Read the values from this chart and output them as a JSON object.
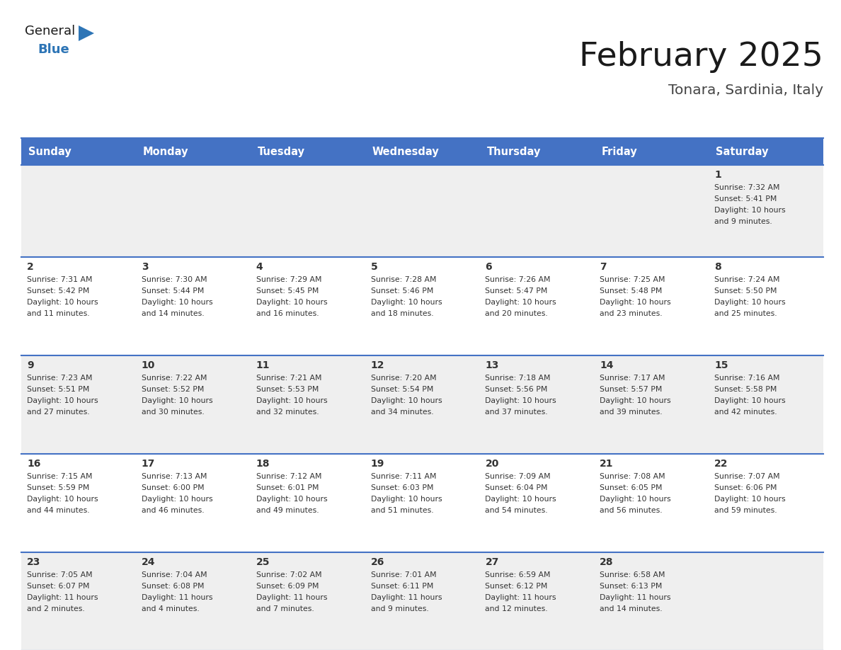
{
  "title": "February 2025",
  "subtitle": "Tonara, Sardinia, Italy",
  "header_bg": "#4472C4",
  "header_text_color": "#FFFFFF",
  "day_names": [
    "Sunday",
    "Monday",
    "Tuesday",
    "Wednesday",
    "Thursday",
    "Friday",
    "Saturday"
  ],
  "cell_bg_row0": "#EFEFEF",
  "cell_bg_row1": "#FFFFFF",
  "cell_bg_row2": "#EFEFEF",
  "cell_bg_row3": "#FFFFFF",
  "cell_bg_row4": "#EFEFEF",
  "cell_border_color": "#4472C4",
  "title_color": "#1a1a1a",
  "subtitle_color": "#444444",
  "text_color": "#333333",
  "logo_general_color": "#1a1a1a",
  "logo_blue_color": "#2E75B6",
  "days_data": [
    {
      "day": 1,
      "col": 6,
      "row": 0,
      "sunrise": "7:32 AM",
      "sunset": "5:41 PM",
      "daylight": "10 hours and 9 minutes."
    },
    {
      "day": 2,
      "col": 0,
      "row": 1,
      "sunrise": "7:31 AM",
      "sunset": "5:42 PM",
      "daylight": "10 hours and 11 minutes."
    },
    {
      "day": 3,
      "col": 1,
      "row": 1,
      "sunrise": "7:30 AM",
      "sunset": "5:44 PM",
      "daylight": "10 hours and 14 minutes."
    },
    {
      "day": 4,
      "col": 2,
      "row": 1,
      "sunrise": "7:29 AM",
      "sunset": "5:45 PM",
      "daylight": "10 hours and 16 minutes."
    },
    {
      "day": 5,
      "col": 3,
      "row": 1,
      "sunrise": "7:28 AM",
      "sunset": "5:46 PM",
      "daylight": "10 hours and 18 minutes."
    },
    {
      "day": 6,
      "col": 4,
      "row": 1,
      "sunrise": "7:26 AM",
      "sunset": "5:47 PM",
      "daylight": "10 hours and 20 minutes."
    },
    {
      "day": 7,
      "col": 5,
      "row": 1,
      "sunrise": "7:25 AM",
      "sunset": "5:48 PM",
      "daylight": "10 hours and 23 minutes."
    },
    {
      "day": 8,
      "col": 6,
      "row": 1,
      "sunrise": "7:24 AM",
      "sunset": "5:50 PM",
      "daylight": "10 hours and 25 minutes."
    },
    {
      "day": 9,
      "col": 0,
      "row": 2,
      "sunrise": "7:23 AM",
      "sunset": "5:51 PM",
      "daylight": "10 hours and 27 minutes."
    },
    {
      "day": 10,
      "col": 1,
      "row": 2,
      "sunrise": "7:22 AM",
      "sunset": "5:52 PM",
      "daylight": "10 hours and 30 minutes."
    },
    {
      "day": 11,
      "col": 2,
      "row": 2,
      "sunrise": "7:21 AM",
      "sunset": "5:53 PM",
      "daylight": "10 hours and 32 minutes."
    },
    {
      "day": 12,
      "col": 3,
      "row": 2,
      "sunrise": "7:20 AM",
      "sunset": "5:54 PM",
      "daylight": "10 hours and 34 minutes."
    },
    {
      "day": 13,
      "col": 4,
      "row": 2,
      "sunrise": "7:18 AM",
      "sunset": "5:56 PM",
      "daylight": "10 hours and 37 minutes."
    },
    {
      "day": 14,
      "col": 5,
      "row": 2,
      "sunrise": "7:17 AM",
      "sunset": "5:57 PM",
      "daylight": "10 hours and 39 minutes."
    },
    {
      "day": 15,
      "col": 6,
      "row": 2,
      "sunrise": "7:16 AM",
      "sunset": "5:58 PM",
      "daylight": "10 hours and 42 minutes."
    },
    {
      "day": 16,
      "col": 0,
      "row": 3,
      "sunrise": "7:15 AM",
      "sunset": "5:59 PM",
      "daylight": "10 hours and 44 minutes."
    },
    {
      "day": 17,
      "col": 1,
      "row": 3,
      "sunrise": "7:13 AM",
      "sunset": "6:00 PM",
      "daylight": "10 hours and 46 minutes."
    },
    {
      "day": 18,
      "col": 2,
      "row": 3,
      "sunrise": "7:12 AM",
      "sunset": "6:01 PM",
      "daylight": "10 hours and 49 minutes."
    },
    {
      "day": 19,
      "col": 3,
      "row": 3,
      "sunrise": "7:11 AM",
      "sunset": "6:03 PM",
      "daylight": "10 hours and 51 minutes."
    },
    {
      "day": 20,
      "col": 4,
      "row": 3,
      "sunrise": "7:09 AM",
      "sunset": "6:04 PM",
      "daylight": "10 hours and 54 minutes."
    },
    {
      "day": 21,
      "col": 5,
      "row": 3,
      "sunrise": "7:08 AM",
      "sunset": "6:05 PM",
      "daylight": "10 hours and 56 minutes."
    },
    {
      "day": 22,
      "col": 6,
      "row": 3,
      "sunrise": "7:07 AM",
      "sunset": "6:06 PM",
      "daylight": "10 hours and 59 minutes."
    },
    {
      "day": 23,
      "col": 0,
      "row": 4,
      "sunrise": "7:05 AM",
      "sunset": "6:07 PM",
      "daylight": "11 hours and 2 minutes."
    },
    {
      "day": 24,
      "col": 1,
      "row": 4,
      "sunrise": "7:04 AM",
      "sunset": "6:08 PM",
      "daylight": "11 hours and 4 minutes."
    },
    {
      "day": 25,
      "col": 2,
      "row": 4,
      "sunrise": "7:02 AM",
      "sunset": "6:09 PM",
      "daylight": "11 hours and 7 minutes."
    },
    {
      "day": 26,
      "col": 3,
      "row": 4,
      "sunrise": "7:01 AM",
      "sunset": "6:11 PM",
      "daylight": "11 hours and 9 minutes."
    },
    {
      "day": 27,
      "col": 4,
      "row": 4,
      "sunrise": "6:59 AM",
      "sunset": "6:12 PM",
      "daylight": "11 hours and 12 minutes."
    },
    {
      "day": 28,
      "col": 5,
      "row": 4,
      "sunrise": "6:58 AM",
      "sunset": "6:13 PM",
      "daylight": "11 hours and 14 minutes."
    }
  ]
}
